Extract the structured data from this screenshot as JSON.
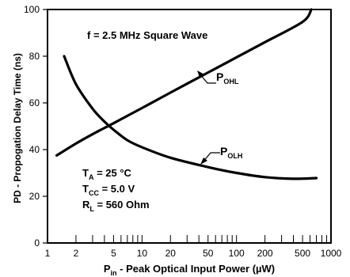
{
  "chart_data": {
    "type": "line",
    "xlabel_main": "P",
    "xlabel_sub": "in",
    "xlabel_rest": " - Peak Optical Input Power (µW)",
    "ylabel": "PD - Propogation Delay Time (ns)",
    "xscale": "log",
    "xlim": [
      1,
      1000
    ],
    "ylim": [
      0,
      100
    ],
    "x_ticks": [
      1,
      2,
      5,
      10,
      20,
      50,
      100,
      200,
      500,
      1000
    ],
    "x_tick_labels": [
      "1",
      "2",
      "5",
      "10",
      "20",
      "50",
      "100",
      "200",
      "500",
      "1000"
    ],
    "x_minor_ticks": [
      2,
      3,
      4,
      5,
      6,
      7,
      8,
      9,
      10,
      20,
      30,
      40,
      50,
      60,
      70,
      80,
      90,
      100,
      200,
      300,
      400,
      500,
      600,
      700,
      800,
      900
    ],
    "y_ticks": [
      0,
      20,
      40,
      60,
      80,
      100
    ],
    "y_tick_labels": [
      "0",
      "20",
      "40",
      "60",
      "80",
      "100"
    ],
    "grid": false,
    "series": [
      {
        "name_main": "P",
        "name_sub": "OHL",
        "x": [
          1.25,
          2,
          3,
          5,
          10,
          20,
          50,
          100,
          200,
          500,
          620
        ],
        "y": [
          37.5,
          42.6,
          46.6,
          51.3,
          57.8,
          64.4,
          73.0,
          79.5,
          86.0,
          94.7,
          100
        ]
      },
      {
        "name_main": "P",
        "name_sub": "OLH",
        "x": [
          1.5,
          2,
          3,
          4,
          5,
          7,
          10,
          20,
          50,
          100,
          200,
          400,
          700
        ],
        "y": [
          80,
          68,
          57.5,
          52,
          48.5,
          44,
          41,
          36.5,
          32.5,
          30,
          28.2,
          27.5,
          27.8
        ]
      }
    ],
    "annotations": {
      "condition": "f = 2.5 MHz Square Wave",
      "ta_main": "T",
      "ta_sub": "A",
      "ta_rest": " = 25 °C",
      "tcc_main": "T",
      "tcc_sub": "CC",
      "tcc_rest": " = 5.0 V",
      "rl_main": "R",
      "rl_sub": "L",
      "rl_rest": " = 560 Ohm"
    }
  }
}
